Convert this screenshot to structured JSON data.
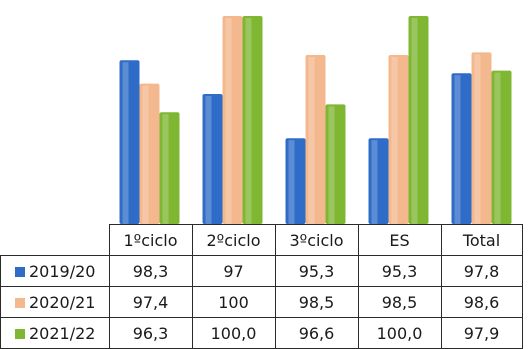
{
  "colors": {
    "s2019": "#2f6cc8",
    "s2020": "#f4b88e",
    "s2021": "#7fb733"
  },
  "chart_data": {
    "type": "bar",
    "categories": [
      "1ºciclo",
      "2ºciclo",
      "3ºciclo",
      "ES",
      "Total"
    ],
    "series": [
      {
        "name": "2019/20",
        "values": [
          "98,3",
          "97",
          "95,3",
          "95,3",
          "97,8"
        ]
      },
      {
        "name": "2020/21",
        "values": [
          "97,4",
          "100",
          "98,5",
          "98,5",
          "98,6"
        ]
      },
      {
        "name": "2021/22",
        "values": [
          "96,3",
          "100,0",
          "96,6",
          "100,0",
          "97,9"
        ]
      }
    ],
    "ylim": [
      92,
      100
    ],
    "grid": false,
    "legend": "data-table"
  }
}
